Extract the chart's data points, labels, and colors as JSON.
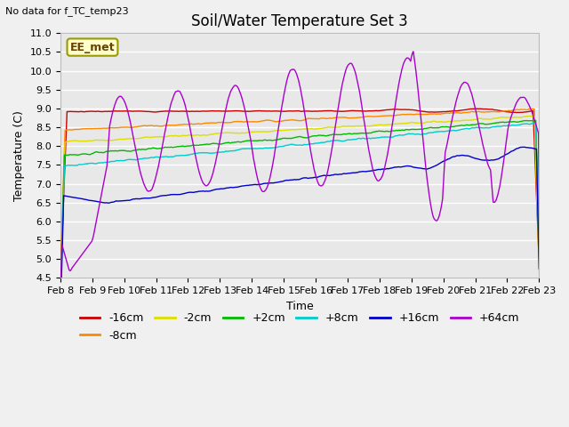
{
  "title": "Soil/Water Temperature Set 3",
  "xlabel": "Time",
  "ylabel": "Temperature (C)",
  "top_left_note": "No data for f_TC_temp23",
  "annotation_box": "EE_met",
  "ylim": [
    4.5,
    11.0
  ],
  "yticks": [
    4.5,
    5.0,
    5.5,
    6.0,
    6.5,
    7.0,
    7.5,
    8.0,
    8.5,
    9.0,
    9.5,
    10.0,
    10.5,
    11.0
  ],
  "xtick_labels": [
    "Feb 8",
    "Feb 9",
    "Feb 10",
    "Feb 11",
    "Feb 12",
    "Feb 13",
    "Feb 14",
    "Feb 15",
    "Feb 16",
    "Feb 17",
    "Feb 18",
    "Feb 19",
    "Feb 20",
    "Feb 21",
    "Feb 22",
    "Feb 23"
  ],
  "series_colors": {
    "-16cm": "#cc0000",
    "-8cm": "#ff8800",
    "-2cm": "#dddd00",
    "+2cm": "#00bb00",
    "+8cm": "#00cccc",
    "+16cm": "#0000cc",
    "+64cm": "#aa00cc"
  },
  "background_color": "#e8e8e8",
  "grid_color": "#ffffff",
  "title_fontsize": 12,
  "axis_fontsize": 9,
  "tick_fontsize": 8,
  "legend_fontsize": 9
}
